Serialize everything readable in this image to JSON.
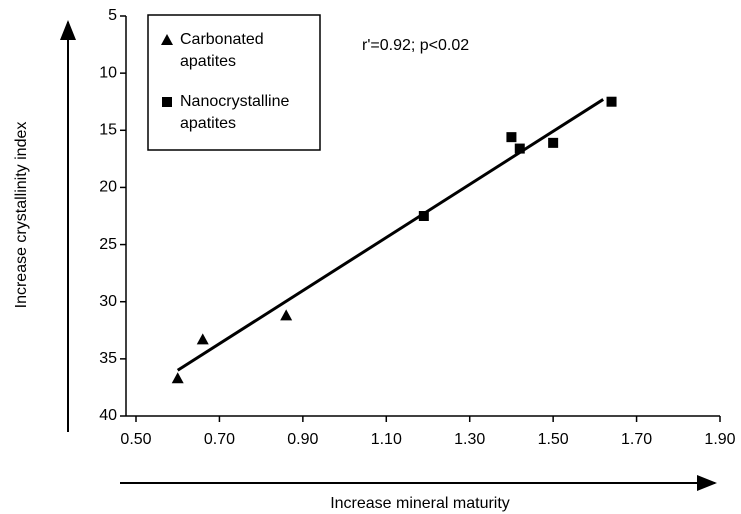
{
  "chart_data": {
    "type": "scatter",
    "x_label": "Increase mineral maturity",
    "y_label": "Increase crystallinity index",
    "annotation": "r'=0.92; p<0.02",
    "xlim": [
      0.5,
      1.9
    ],
    "xticks": [
      {
        "value": 0.5,
        "label": "0.50"
      },
      {
        "value": 0.7,
        "label": "0.70"
      },
      {
        "value": 0.9,
        "label": "0.90"
      },
      {
        "value": 1.1,
        "label": "1.10"
      },
      {
        "value": 1.3,
        "label": "1.30"
      },
      {
        "value": 1.5,
        "label": "1.50"
      },
      {
        "value": 1.7,
        "label": "1.70"
      },
      {
        "value": 1.9,
        "label": "1.90"
      }
    ],
    "ylim": [
      5,
      40
    ],
    "yticks": [
      5,
      10,
      15,
      20,
      25,
      30,
      35,
      40
    ],
    "y_inverted": true,
    "series": [
      {
        "name": "Carbonated apatites",
        "marker": "triangle",
        "color": "#000000",
        "x": [
          0.6,
          0.66,
          0.86
        ],
        "values": [
          36.7,
          33.3,
          31.2
        ]
      },
      {
        "name": "Nanocrystalline apatites",
        "marker": "square",
        "color": "#000000",
        "x": [
          1.19,
          1.4,
          1.42,
          1.5,
          1.64
        ],
        "values": [
          22.5,
          15.6,
          16.6,
          16.1,
          12.5
        ]
      }
    ],
    "trendline": {
      "x": [
        0.6,
        1.62
      ],
      "values": [
        36.0,
        12.3
      ],
      "color": "#000000"
    }
  }
}
